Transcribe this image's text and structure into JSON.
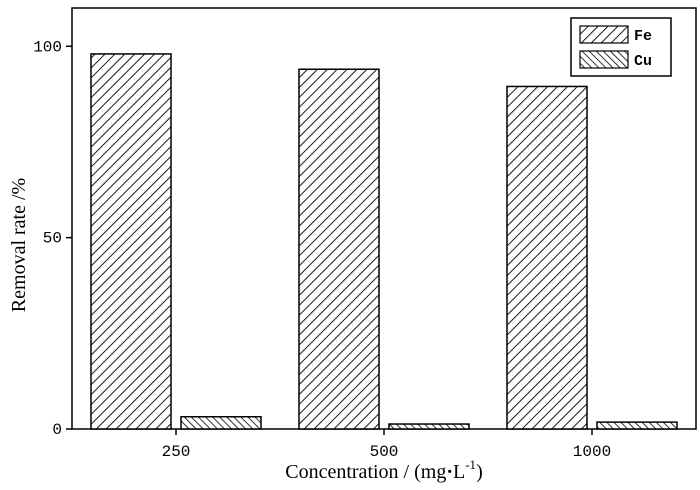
{
  "chart_data": {
    "type": "bar",
    "categories": [
      "250",
      "500",
      "1000"
    ],
    "series": [
      {
        "name": "Fe",
        "values": [
          98,
          94,
          89.5
        ]
      },
      {
        "name": "Cu",
        "values": [
          3.2,
          1.3,
          1.8
        ]
      }
    ],
    "xlabel_main": "Concentration / (mg",
    "xlabel_dot": "·",
    "xlabel_unit": "L",
    "xlabel_exp": "-1",
    "xlabel_close": ")",
    "ylabel": "Removal rate /%",
    "ylim": [
      0,
      110
    ],
    "yticks": [
      0,
      50,
      100
    ],
    "ytick_labels": [
      "0",
      "50",
      "100"
    ],
    "legend_position": "top-right"
  }
}
